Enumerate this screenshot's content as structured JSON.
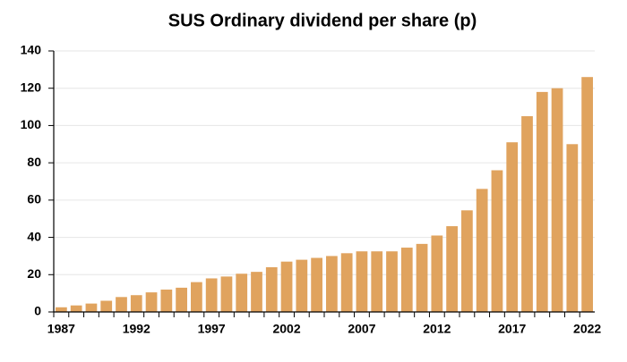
{
  "chart_data": {
    "type": "bar",
    "title": "SUS Ordinary dividend per share (p)",
    "categories": [
      "1987",
      null,
      null,
      null,
      null,
      "1992",
      null,
      null,
      null,
      null,
      "1997",
      null,
      null,
      null,
      null,
      "2002",
      null,
      null,
      null,
      null,
      "2007",
      null,
      null,
      null,
      null,
      "2012",
      null,
      null,
      null,
      null,
      "2017",
      null,
      null,
      null,
      null,
      "2022"
    ],
    "values": [
      2.5,
      3.5,
      4.5,
      6,
      8,
      9,
      10.5,
      12,
      13,
      16,
      18,
      19,
      20.5,
      21.5,
      24,
      27,
      28,
      29,
      30,
      31.5,
      32.5,
      32.5,
      32.5,
      34.5,
      36.5,
      41,
      46,
      54.5,
      66,
      76,
      91,
      105,
      118,
      120,
      90,
      126
    ],
    "color": "#e0a35e",
    "ylim": [
      0,
      140
    ],
    "yticks": [
      0,
      20,
      40,
      60,
      80,
      100,
      120,
      140
    ],
    "grid": true
  }
}
